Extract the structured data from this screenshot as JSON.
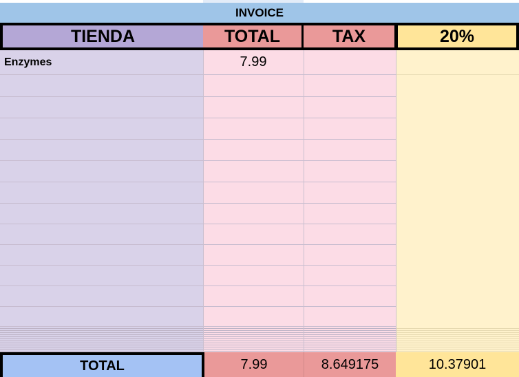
{
  "title": "INVOICE",
  "headers": [
    "TIENDA",
    "TOTAL",
    "TAX",
    "20%"
  ],
  "rows": [
    {
      "tienda": "Enzymes",
      "total": "7.99",
      "tax": "",
      "pct": ""
    }
  ],
  "totals": {
    "label": "TOTAL",
    "total": "7.99",
    "tax": "8.649175",
    "pct": "10.37901"
  },
  "colors": {
    "invoice": "#9fc5e8",
    "tienda_header": "#b4a7d6",
    "tienda_body": "#d9d2e9",
    "red_header": "#ea9999",
    "red_body": "#fcdce6",
    "yellow_header": "#ffe599",
    "yellow_body": "#fff2cc",
    "total_label": "#a4c2f4"
  }
}
